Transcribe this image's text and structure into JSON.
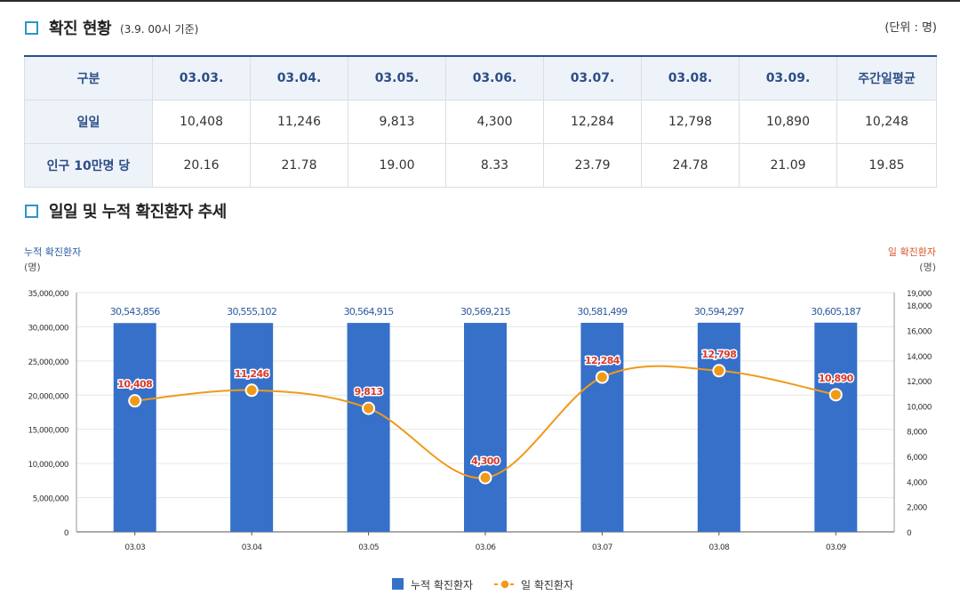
{
  "section1": {
    "title": "확진 현황",
    "subtitle": "(3.9. 00시 기준)",
    "unit": "(단위 : 명)"
  },
  "table": {
    "headers": [
      "구분",
      "03.03.",
      "03.04.",
      "03.05.",
      "03.06.",
      "03.07.",
      "03.08.",
      "03.09.",
      "주간일평균"
    ],
    "rows": [
      {
        "label": "일일",
        "values": [
          "10,408",
          "11,246",
          "9,813",
          "4,300",
          "12,284",
          "12,798",
          "10,890",
          "10,248"
        ]
      },
      {
        "label": "인구 10만명 당",
        "values": [
          "20.16",
          "21.78",
          "19.00",
          "8.33",
          "23.79",
          "24.78",
          "21.09",
          "19.85"
        ]
      }
    ]
  },
  "section2": {
    "title": "일일 및 누적 확진환자 추세"
  },
  "chart_data": {
    "type": "bar",
    "categories": [
      "03.03",
      "03.04",
      "03.05",
      "03.06",
      "03.07",
      "03.08",
      "03.09"
    ],
    "series": [
      {
        "name": "누적 확진환자",
        "type": "bar",
        "axis": "left",
        "color": "#3670c9",
        "values": [
          30543856,
          30555102,
          30564915,
          30569215,
          30581499,
          30594297,
          30605187
        ],
        "labels": [
          "30,543,856",
          "30,555,102",
          "30,564,915",
          "30,569,215",
          "30,581,499",
          "30,594,297",
          "30,605,187"
        ]
      },
      {
        "name": "일 확진환자",
        "type": "line",
        "axis": "right",
        "color": "#f09a1a",
        "values": [
          10408,
          11246,
          9813,
          4300,
          12284,
          12798,
          10890
        ],
        "labels": [
          "10,408",
          "11,246",
          "9,813",
          "4,300",
          "12,284",
          "12,798",
          "10,890"
        ]
      }
    ],
    "left_axis": {
      "label": "누적 확진환자",
      "unit": "(명)",
      "ylim": [
        0,
        35000000
      ],
      "ticks": [
        "0",
        "5,000,000",
        "10,000,000",
        "15,000,000",
        "20,000,000",
        "25,000,000",
        "30,000,000",
        "35,000,000"
      ],
      "tick_values": [
        0,
        5000000,
        10000000,
        15000000,
        20000000,
        25000000,
        30000000,
        35000000
      ]
    },
    "right_axis": {
      "label": "일 확진환자",
      "unit": "(명)",
      "ylim": [
        0,
        19000
      ],
      "ticks": [
        "0",
        "2,000",
        "4,000",
        "6,000",
        "8,000",
        "10,000",
        "12,000",
        "14,000",
        "16,000",
        "18,000",
        "19,000"
      ],
      "tick_values": [
        0,
        2000,
        4000,
        6000,
        8000,
        10000,
        12000,
        14000,
        16000,
        18000,
        19000
      ]
    },
    "grid": true,
    "legend": "bottom-center",
    "colors": {
      "left_axis_text": "#2c5aa0",
      "right_axis_text": "#d9552b",
      "label_red": "#d93a2b"
    }
  }
}
